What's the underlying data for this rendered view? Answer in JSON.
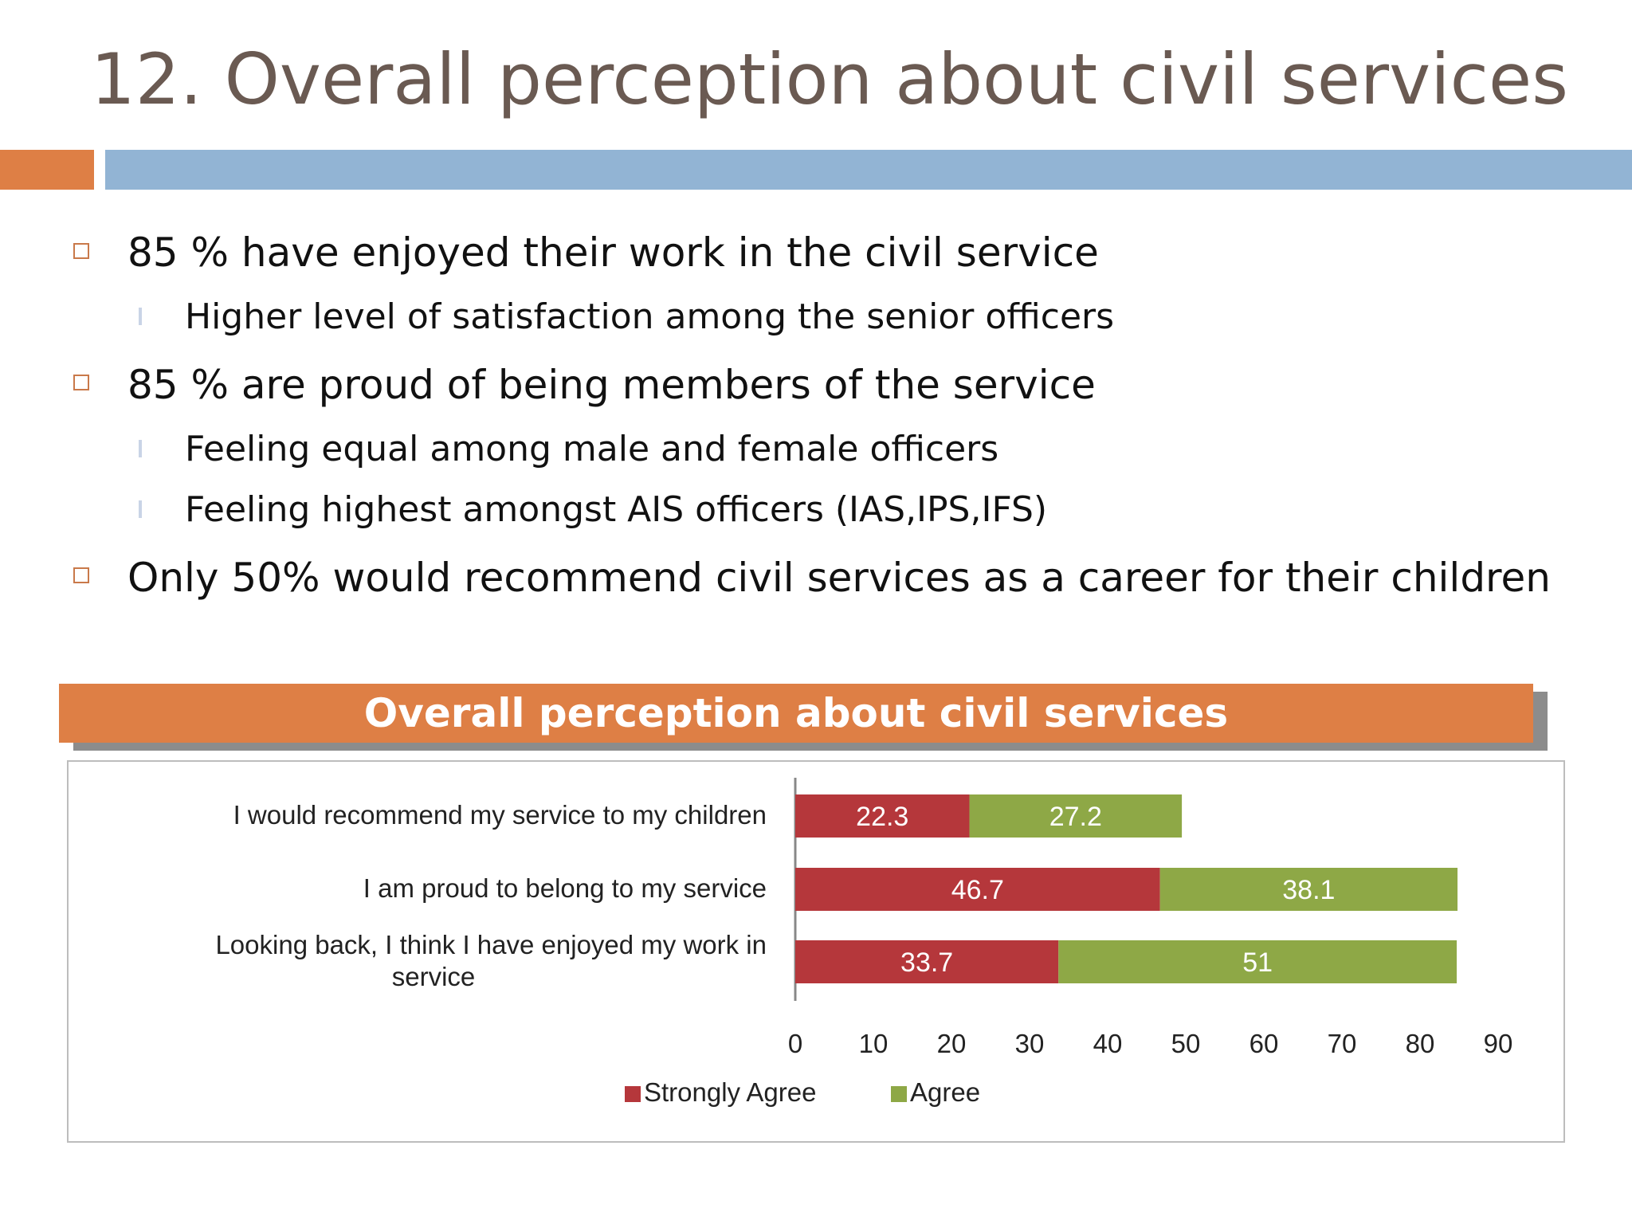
{
  "slide": {
    "title": "12. Overall perception about civil services",
    "bullets": [
      {
        "level": 1,
        "text": "85 % have enjoyed their work in the civil service"
      },
      {
        "level": 2,
        "text": "Higher level of satisfaction among the senior officers"
      },
      {
        "level": 1,
        "text": "85 % are proud of being members of the service"
      },
      {
        "level": 2,
        "text": "Feeling equal among male and female officers"
      },
      {
        "level": 2,
        "text": "Feeling highest amongst AIS officers (IAS,IPS,IFS)"
      },
      {
        "level": 1,
        "text": "Only 50% would recommend civil services as a career for their children"
      }
    ]
  },
  "colors": {
    "accent_orange": "#de7f45",
    "accent_blue": "#92b4d4",
    "strongly_agree": "#b5373b",
    "agree": "#8ea846"
  },
  "chart_data": {
    "type": "bar",
    "orientation": "horizontal",
    "stacked": true,
    "title": "Overall perception about civil services",
    "categories": [
      "I would recommend my service to my children",
      "I am proud to belong to my service",
      "Looking back, I think I have enjoyed my work in service"
    ],
    "category_lines": [
      [
        "I would recommend my service to my children"
      ],
      [
        "I am proud to belong to my service"
      ],
      [
        "Looking back, I think I have enjoyed my work in",
        "service"
      ]
    ],
    "series": [
      {
        "name": "Strongly Agree",
        "values": [
          22.3,
          46.7,
          33.7
        ]
      },
      {
        "name": "Agree",
        "values": [
          27.2,
          38.1,
          51
        ]
      }
    ],
    "xlim": [
      0,
      90
    ],
    "xticks": [
      0,
      10,
      20,
      30,
      40,
      50,
      60,
      70,
      80,
      90
    ],
    "legend": "bottom",
    "grid": false
  }
}
